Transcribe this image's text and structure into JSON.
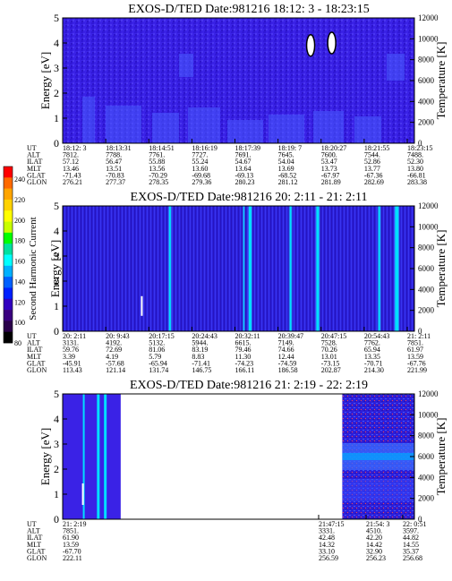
{
  "colors": {
    "background_fill": "#3a22e6",
    "deep_blue": "#2c14cc",
    "lighter_blue": "#4a5cff",
    "cyan": "#00e0ff",
    "white": "#ffffff"
  },
  "colorbar": {
    "label": "Second Harmonic Current",
    "ticks": [
      "240",
      "220",
      "200",
      "180",
      "160",
      "140",
      "120",
      "100",
      "80"
    ],
    "colors": [
      "#ff0000",
      "#ff6a00",
      "#ffa500",
      "#ffd200",
      "#ffff00",
      "#c8ff00",
      "#00ff00",
      "#00e0a0",
      "#00ffff",
      "#00b0ff",
      "#0060ff",
      "#0020ff",
      "#3000c0",
      "#3a007f",
      "#2a004a",
      "#000000"
    ]
  },
  "chart_data": [
    {
      "type": "heatmap",
      "title": "EXOS-D/TED   Date:981216  18:12: 3 - 18:23:15",
      "ylabel": "Energy [eV]",
      "y2label": "Temperature [K]",
      "ylim": [
        0,
        5
      ],
      "y2lim": [
        0,
        12000
      ],
      "yticks": [
        "0",
        "1",
        "2",
        "3",
        "4",
        "5"
      ],
      "y2ticks": [
        "0",
        "2000",
        "4000",
        "6000",
        "8000",
        "10000",
        "12000"
      ],
      "x_fields": [
        "UT",
        "ALT",
        "ILAT",
        "MLT",
        "GLAT",
        "GLON"
      ],
      "x_columns": [
        [
          "18:12: 3",
          "7812.",
          "57.12",
          "13.46",
          "-71.43",
          "276.21"
        ],
        [
          "18:13:31",
          "7788.",
          "56.47",
          "13.51",
          "-70.83",
          "277.37"
        ],
        [
          "18:14:51",
          "7761.",
          "55.88",
          "13.56",
          "-70.29",
          "278.35"
        ],
        [
          "18:16:19",
          "7727.",
          "55.24",
          "13.60",
          "-69.68",
          "279.36"
        ],
        [
          "18:17:39",
          "7691.",
          "54.67",
          "13.64",
          "-69.13",
          "280.23"
        ],
        [
          "18:19: 7",
          "7645.",
          "54.04",
          "13.69",
          "-68.52",
          "281.12"
        ],
        [
          "18:20:27",
          "7600.",
          "53.47",
          "13.73",
          "-67.97",
          "281.89"
        ],
        [
          "18:21:55",
          "7544.",
          "52.86",
          "13.77",
          "-67.36",
          "282.69"
        ],
        [
          "18:23:15",
          "7488.",
          "52.30",
          "13.80",
          "-66.81",
          "283.38"
        ]
      ],
      "features": [
        {
          "kind": "white-oval",
          "x_frac": 0.705,
          "y_frac": 0.22
        },
        {
          "kind": "white-oval",
          "x_frac": 0.765,
          "y_frac": 0.2
        }
      ]
    },
    {
      "type": "heatmap",
      "title": "EXOS-D/TED   Date:981216  20: 2:11 - 21: 2:11",
      "ylabel": "Energy [eV]",
      "y2label": "Temperature [K]",
      "ylim": [
        0,
        5
      ],
      "y2lim": [
        0,
        12000
      ],
      "yticks": [
        "0",
        "1",
        "2",
        "3",
        "4",
        "5"
      ],
      "y2ticks": [
        "0",
        "2000",
        "4000",
        "6000",
        "8000",
        "10000",
        "12000"
      ],
      "x_fields": [
        "UT",
        "ALT",
        "ILAT",
        "MLT",
        "GLAT",
        "GLON"
      ],
      "x_columns": [
        [
          "20: 2:11",
          "3131.",
          "59.76",
          "3.39",
          "-45.91",
          "113.43"
        ],
        [
          "20: 9:43",
          "4192.",
          "72.69",
          "4.19",
          "-57.68",
          "121.14"
        ],
        [
          "20:17:15",
          "5132.",
          "81.06",
          "5.79",
          "-65.94",
          "131.74"
        ],
        [
          "20:24:43",
          "5944.",
          "83.19",
          "8.83",
          "-71.41",
          "146.75"
        ],
        [
          "20:32:11",
          "6615.",
          "79.46",
          "11.30",
          "-74.23",
          "166.11"
        ],
        [
          "20:39:47",
          "7149.",
          "74.66",
          "12.44",
          "-74.59",
          "186.58"
        ],
        [
          "20:47:15",
          "7528.",
          "70.26",
          "13.01",
          "-73.15",
          "202.87"
        ],
        [
          "20:54:43",
          "7762.",
          "65.94",
          "13.35",
          "-70.71",
          "214.30"
        ],
        [
          "21: 2:11",
          "7851.",
          "61.97",
          "13.59",
          "-67.76",
          "221.99"
        ]
      ],
      "stripes": [
        {
          "x_frac": 0.305,
          "color": "cyan",
          "width": 2
        },
        {
          "x_frac": 0.515,
          "color": "cyan",
          "width": 1
        },
        {
          "x_frac": 0.533,
          "color": "cyan",
          "width": 3
        },
        {
          "x_frac": 0.648,
          "color": "cyan",
          "width": 2
        },
        {
          "x_frac": 0.725,
          "color": "cyan",
          "width": 3
        },
        {
          "x_frac": 0.9,
          "color": "cyan",
          "width": 2
        },
        {
          "x_frac": 0.95,
          "color": "cyan",
          "width": 4
        }
      ],
      "features": [
        {
          "kind": "white-tick",
          "x_frac": 0.225,
          "y_frac": 0.22
        }
      ]
    },
    {
      "type": "heatmap",
      "title": "EXOS-D/TED   Date:981216  21: 2:19 - 22: 2:19",
      "ylabel": "Energy [eV]",
      "y2label": "Temperature [K]",
      "ylim": [
        0,
        5
      ],
      "y2lim": [
        0,
        12000
      ],
      "yticks": [
        "0",
        "1",
        "2",
        "3",
        "4",
        "5"
      ],
      "y2ticks": [
        "0",
        "2000",
        "4000",
        "6000",
        "8000",
        "10000",
        "12000"
      ],
      "x_fields": [
        "UT",
        "ALT",
        "ILAT",
        "MLT",
        "GLAT",
        "GLON"
      ],
      "x_columns": [
        [
          "21: 2:19",
          "7851.",
          "61.90",
          "13.59",
          "-67.70",
          "222.11"
        ],
        [
          "21:47:15",
          "3331.",
          "42.48",
          "14.32",
          "33.10",
          "256.59"
        ],
        [
          "21:54: 3",
          "4510.",
          "42.20",
          "14.42",
          "32.90",
          "256.23"
        ],
        [
          "22: 0:51",
          "3597.",
          "44.82",
          "14.55",
          "35.37",
          "256.68"
        ]
      ],
      "data_segments": [
        {
          "from_frac": 0.0,
          "to_frac": 0.165
        },
        {
          "from_frac": 0.795,
          "to_frac": 1.0
        }
      ]
    }
  ]
}
